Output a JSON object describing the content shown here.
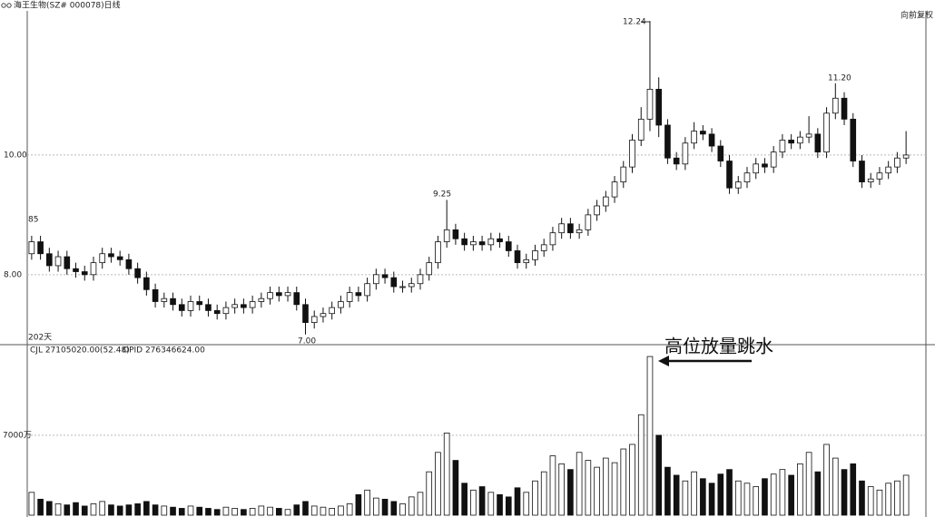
{
  "chart_data": {
    "type": "candlestick",
    "title": "海王生物(SZ# 000078)日线",
    "adjust_label": "向前复权",
    "period_label": "202天",
    "volume_caption": "CJL  27105020.00(52.48)",
    "volume_caption2": "OPID  276346624.00",
    "annotation": "高位放量跳水",
    "price_labels": [
      "12.24",
      "9.25",
      "11.20",
      "7.00",
      "85"
    ],
    "ylim": [
      6.86,
      12.41
    ],
    "yticks": [
      {
        "value": 8,
        "label": "8.00"
      },
      {
        "value": 10,
        "label": "10.00"
      }
    ],
    "grid": true,
    "open": [
      8.35,
      8.55,
      8.35,
      8.15,
      8.3,
      8.1,
      8.05,
      8.0,
      8.2,
      8.35,
      8.3,
      8.25,
      8.1,
      7.95,
      7.75,
      7.55,
      7.6,
      7.5,
      7.4,
      7.55,
      7.5,
      7.4,
      7.35,
      7.45,
      7.5,
      7.45,
      7.55,
      7.6,
      7.7,
      7.65,
      7.7,
      7.5,
      7.2,
      7.3,
      7.35,
      7.45,
      7.55,
      7.7,
      7.65,
      7.85,
      8.0,
      7.95,
      7.8,
      7.8,
      7.85,
      8.0,
      8.2,
      8.55,
      8.75,
      8.6,
      8.5,
      8.55,
      8.5,
      8.6,
      8.55,
      8.4,
      8.2,
      8.25,
      8.4,
      8.5,
      8.7,
      8.85,
      8.7,
      8.75,
      9.0,
      9.15,
      9.3,
      9.55,
      9.8,
      10.25,
      10.6,
      11.1,
      10.5,
      9.95,
      9.85,
      10.2,
      10.4,
      10.35,
      10.15,
      9.9,
      9.45,
      9.55,
      9.7,
      9.85,
      9.8,
      10.05,
      10.25,
      10.2,
      10.3,
      10.35,
      10.05,
      10.7,
      10.95,
      10.6,
      9.9,
      9.55,
      9.6,
      9.7,
      9.8,
      9.95
    ],
    "close": [
      8.55,
      8.35,
      8.15,
      8.3,
      8.1,
      8.05,
      8.0,
      8.2,
      8.35,
      8.3,
      8.25,
      8.1,
      7.95,
      7.75,
      7.55,
      7.6,
      7.5,
      7.4,
      7.55,
      7.5,
      7.4,
      7.35,
      7.45,
      7.5,
      7.45,
      7.55,
      7.6,
      7.7,
      7.65,
      7.7,
      7.5,
      7.2,
      7.3,
      7.35,
      7.45,
      7.55,
      7.7,
      7.65,
      7.85,
      8.0,
      7.95,
      7.8,
      7.8,
      7.85,
      8.0,
      8.2,
      8.55,
      8.75,
      8.6,
      8.5,
      8.55,
      8.5,
      8.6,
      8.55,
      8.4,
      8.2,
      8.25,
      8.4,
      8.5,
      8.7,
      8.85,
      8.7,
      8.75,
      9.0,
      9.15,
      9.3,
      9.55,
      9.8,
      10.25,
      10.6,
      11.1,
      10.5,
      9.95,
      9.85,
      10.2,
      10.4,
      10.35,
      10.15,
      9.9,
      9.45,
      9.55,
      9.7,
      9.85,
      9.8,
      10.05,
      10.25,
      10.2,
      10.3,
      10.35,
      10.05,
      10.7,
      10.95,
      10.6,
      9.9,
      9.55,
      9.6,
      9.7,
      9.8,
      9.95,
      10.0
    ],
    "high": [
      8.65,
      8.65,
      8.45,
      8.4,
      8.4,
      8.2,
      8.15,
      8.3,
      8.45,
      8.45,
      8.4,
      8.35,
      8.2,
      8.05,
      7.85,
      7.7,
      7.7,
      7.6,
      7.65,
      7.65,
      7.6,
      7.5,
      7.55,
      7.6,
      7.6,
      7.65,
      7.7,
      7.8,
      7.8,
      7.8,
      7.8,
      7.6,
      7.4,
      7.45,
      7.55,
      7.65,
      7.8,
      7.8,
      7.95,
      8.1,
      8.1,
      8.05,
      7.9,
      7.95,
      8.1,
      8.3,
      8.65,
      9.25,
      8.85,
      8.7,
      8.65,
      8.65,
      8.7,
      8.7,
      8.65,
      8.5,
      8.35,
      8.5,
      8.6,
      8.8,
      8.95,
      8.95,
      8.85,
      9.1,
      9.25,
      9.4,
      9.65,
      9.9,
      10.35,
      10.8,
      12.24,
      11.3,
      10.6,
      10.05,
      10.3,
      10.55,
      10.5,
      10.45,
      10.25,
      10.0,
      9.65,
      9.8,
      9.95,
      9.95,
      10.15,
      10.35,
      10.35,
      10.4,
      10.65,
      10.45,
      10.8,
      11.2,
      11.05,
      10.7,
      10.0,
      9.7,
      9.8,
      9.9,
      10.05,
      10.4
    ],
    "low": [
      8.25,
      8.25,
      8.05,
      8.05,
      8.0,
      7.95,
      7.9,
      7.9,
      8.1,
      8.2,
      8.15,
      8.0,
      7.85,
      7.65,
      7.45,
      7.45,
      7.4,
      7.3,
      7.3,
      7.4,
      7.3,
      7.25,
      7.25,
      7.35,
      7.35,
      7.35,
      7.45,
      7.5,
      7.55,
      7.55,
      7.4,
      7.0,
      7.1,
      7.2,
      7.25,
      7.35,
      7.45,
      7.55,
      7.55,
      7.75,
      7.85,
      7.7,
      7.7,
      7.7,
      7.75,
      7.9,
      8.1,
      8.45,
      8.5,
      8.4,
      8.4,
      8.4,
      8.4,
      8.45,
      8.3,
      8.1,
      8.1,
      8.15,
      8.3,
      8.4,
      8.6,
      8.6,
      8.6,
      8.65,
      8.9,
      9.05,
      9.2,
      9.45,
      9.7,
      10.15,
      10.4,
      10.3,
      9.85,
      9.75,
      9.75,
      10.1,
      10.25,
      10.05,
      9.8,
      9.35,
      9.35,
      9.45,
      9.6,
      9.7,
      9.7,
      9.95,
      10.1,
      10.1,
      10.2,
      9.95,
      9.95,
      10.6,
      10.5,
      9.8,
      9.45,
      9.45,
      9.5,
      9.6,
      9.7,
      9.85
    ],
    "volume": {
      "ylim": [
        0,
        147000000
      ],
      "yticks": [
        {
          "value": 70000000,
          "label": "7000万"
        }
      ],
      "values": [
        20000000,
        14000000,
        12000000,
        10000000,
        9000000,
        11000000,
        8000000,
        10000000,
        12000000,
        9000000,
        8000000,
        9000000,
        10000000,
        12000000,
        9000000,
        8000000,
        7000000,
        6000000,
        8000000,
        7000000,
        6000000,
        5000000,
        7000000,
        6000000,
        5000000,
        6000000,
        8000000,
        7000000,
        6000000,
        5000000,
        9000000,
        12000000,
        8000000,
        7000000,
        6000000,
        8000000,
        10000000,
        18000000,
        22000000,
        15000000,
        14000000,
        12000000,
        10000000,
        16000000,
        20000000,
        38000000,
        55000000,
        72000000,
        48000000,
        28000000,
        22000000,
        25000000,
        20000000,
        18000000,
        16000000,
        24000000,
        20000000,
        30000000,
        38000000,
        52000000,
        45000000,
        40000000,
        55000000,
        48000000,
        42000000,
        50000000,
        46000000,
        58000000,
        62000000,
        88000000,
        139000000,
        70000000,
        42000000,
        35000000,
        30000000,
        38000000,
        32000000,
        28000000,
        36000000,
        40000000,
        30000000,
        28000000,
        25000000,
        32000000,
        36000000,
        40000000,
        35000000,
        45000000,
        55000000,
        38000000,
        62000000,
        50000000,
        40000000,
        45000000,
        30000000,
        25000000,
        22000000,
        28000000,
        30000000,
        35000000
      ]
    }
  }
}
